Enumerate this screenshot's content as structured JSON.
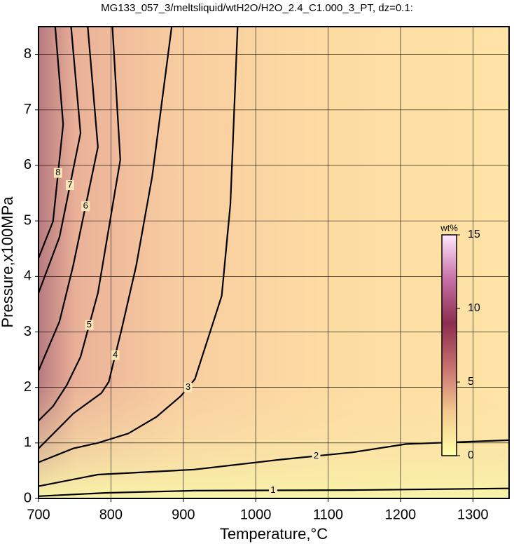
{
  "chart_data": {
    "type": "contour",
    "title": "MG133_057_3/meltsliquid/wtH2O/H2O_2.4_C1.000_3_PT, dz=0.1:",
    "x_label": "Temperature,°C",
    "y_label": "Pressure,x100MPa",
    "xlim": [
      700,
      1350
    ],
    "ylim": [
      0,
      8.5
    ],
    "xticks": [
      700,
      800,
      900,
      1000,
      1100,
      1200,
      1300
    ],
    "yticks": [
      0,
      1,
      2,
      3,
      4,
      5,
      6,
      7,
      8
    ],
    "grid": true,
    "line_color": "#000000",
    "series": [
      {
        "level": 1,
        "x": [
          700,
          792,
          915,
          1133,
          1350
        ],
        "y": [
          0.04,
          0.1,
          0.14,
          0.15,
          0.18
        ]
      },
      {
        "level": 2,
        "x": [
          700,
          782,
          915,
          1034,
          1133,
          1208,
          1350
        ],
        "y": [
          0.22,
          0.43,
          0.52,
          0.7,
          0.83,
          0.98,
          1.05
        ]
      },
      {
        "level": 3,
        "x": [
          700,
          748,
          782,
          824,
          863,
          897,
          916,
          935,
          953,
          965,
          975
        ],
        "y": [
          0.65,
          0.9,
          1.0,
          1.17,
          1.47,
          1.85,
          2.15,
          2.92,
          3.65,
          5.3,
          8.5
        ]
      },
      {
        "level": 4,
        "x": [
          700,
          729,
          748,
          787,
          797,
          815,
          835,
          857,
          884
        ],
        "y": [
          0.9,
          1.28,
          1.53,
          1.9,
          2.1,
          3.06,
          4.2,
          5.8,
          8.5
        ]
      },
      {
        "level": 5,
        "x": [
          700,
          720,
          739,
          758,
          782,
          813,
          802
        ],
        "y": [
          1.4,
          1.66,
          2.04,
          2.55,
          3.7,
          6.1,
          8.5
        ]
      },
      {
        "level": 6,
        "x": [
          700,
          729,
          748,
          782,
          768
        ],
        "y": [
          2.3,
          3.19,
          4.2,
          6.33,
          8.5
        ]
      },
      {
        "level": 7,
        "x": [
          700,
          729,
          758,
          745
        ],
        "y": [
          3.7,
          4.71,
          6.58,
          8.5
        ]
      },
      {
        "level": 8,
        "x": [
          700,
          720,
          734,
          723
        ],
        "y": [
          4.33,
          4.99,
          6.74,
          8.5
        ]
      }
    ],
    "colorbar": {
      "label": "wt%",
      "lim": [
        0,
        15
      ],
      "ticks": [
        0,
        5,
        10,
        15
      ],
      "colors": [
        "#ffffa8",
        "#f4c890",
        "#c77070",
        "#8c2e4e",
        "#c870a8",
        "#ffe8ff"
      ]
    }
  }
}
